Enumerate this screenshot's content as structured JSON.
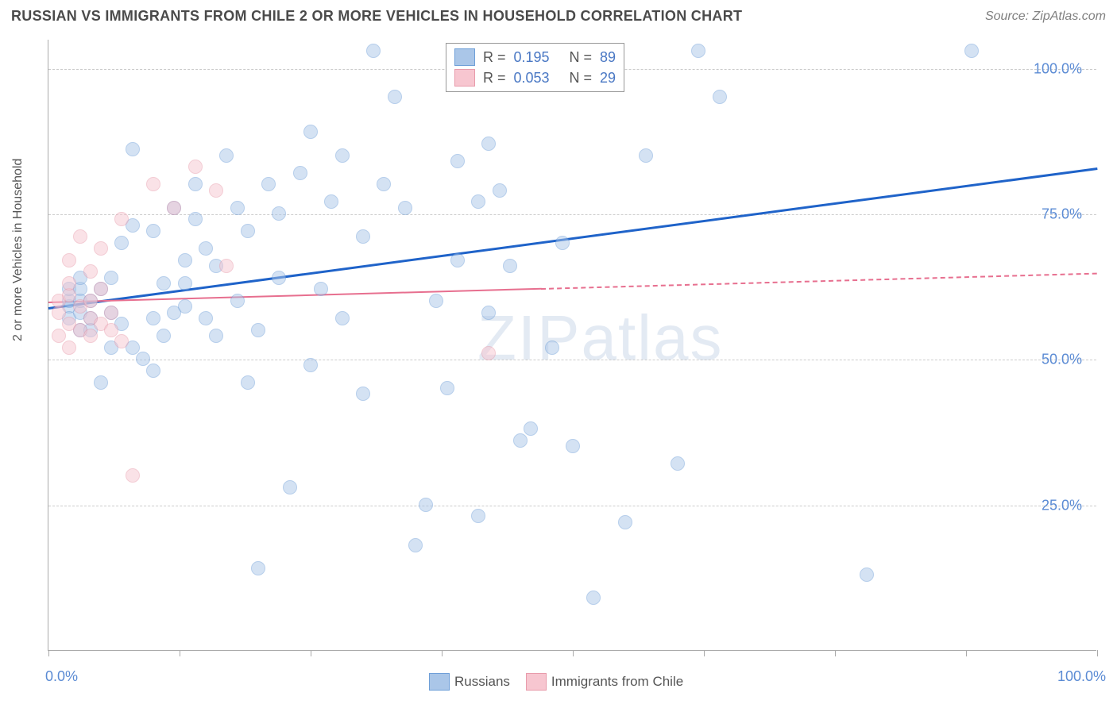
{
  "title": "RUSSIAN VS IMMIGRANTS FROM CHILE 2 OR MORE VEHICLES IN HOUSEHOLD CORRELATION CHART",
  "source": "Source: ZipAtlas.com",
  "ylabel": "2 or more Vehicles in Household",
  "watermark": "ZIPatlas",
  "chart": {
    "type": "scatter",
    "xlim": [
      0,
      100
    ],
    "ylim": [
      0,
      105
    ],
    "xticks": [
      0,
      12.5,
      25,
      37.5,
      50,
      62.5,
      75,
      87.5,
      100
    ],
    "xlabels": {
      "0": "0.0%",
      "100": "100.0%"
    },
    "ygrid": [
      25,
      50,
      75,
      100
    ],
    "ylabels": {
      "25": "25.0%",
      "50": "50.0%",
      "75": "75.0%",
      "100": "100.0%"
    },
    "background_color": "#ffffff",
    "grid_color": "#cccccc",
    "axis_color": "#aaaaaa",
    "label_color": "#5b8bd4",
    "marker_radius": 9,
    "marker_opacity": 0.5,
    "series": [
      {
        "name": "Russians",
        "color_fill": "#aac6e8",
        "color_stroke": "#6f9fd8",
        "R": "0.195",
        "N": "89",
        "trend": {
          "x1": 0,
          "y1": 59,
          "x2": 100,
          "y2": 83,
          "color": "#1f63c9",
          "width": 3,
          "dash_after_x": 100
        },
        "points": [
          [
            2,
            59
          ],
          [
            2,
            60
          ],
          [
            2,
            62
          ],
          [
            2,
            57
          ],
          [
            3,
            55
          ],
          [
            3,
            58
          ],
          [
            3,
            62
          ],
          [
            3,
            60
          ],
          [
            4,
            57
          ],
          [
            4,
            60
          ],
          [
            5,
            46
          ],
          [
            6,
            58
          ],
          [
            6,
            64
          ],
          [
            7,
            70
          ],
          [
            8,
            52
          ],
          [
            8,
            73
          ],
          [
            8,
            86
          ],
          [
            9,
            50
          ],
          [
            10,
            48
          ],
          [
            10,
            57
          ],
          [
            10,
            72
          ],
          [
            11,
            63
          ],
          [
            12,
            76
          ],
          [
            12,
            58
          ],
          [
            13,
            63
          ],
          [
            13,
            67
          ],
          [
            14,
            74
          ],
          [
            14,
            80
          ],
          [
            15,
            69
          ],
          [
            15,
            57
          ],
          [
            16,
            54
          ],
          [
            17,
            85
          ],
          [
            18,
            60
          ],
          [
            18,
            76
          ],
          [
            19,
            46
          ],
          [
            20,
            14
          ],
          [
            21,
            80
          ],
          [
            22,
            75
          ],
          [
            22,
            64
          ],
          [
            23,
            28
          ],
          [
            24,
            82
          ],
          [
            25,
            49
          ],
          [
            25,
            89
          ],
          [
            27,
            77
          ],
          [
            28,
            85
          ],
          [
            28,
            57
          ],
          [
            30,
            71
          ],
          [
            30,
            44
          ],
          [
            31,
            103
          ],
          [
            32,
            80
          ],
          [
            33,
            95
          ],
          [
            34,
            76
          ],
          [
            35,
            18
          ],
          [
            36,
            25
          ],
          [
            37,
            60
          ],
          [
            38,
            45
          ],
          [
            39,
            84
          ],
          [
            39,
            67
          ],
          [
            40,
            103
          ],
          [
            41,
            77
          ],
          [
            41,
            23
          ],
          [
            42,
            58
          ],
          [
            42,
            87
          ],
          [
            43,
            79
          ],
          [
            44,
            66
          ],
          [
            45,
            36
          ],
          [
            46,
            38
          ],
          [
            48,
            52
          ],
          [
            49,
            70
          ],
          [
            50,
            35
          ],
          [
            52,
            9
          ],
          [
            55,
            22
          ],
          [
            57,
            85
          ],
          [
            60,
            32
          ],
          [
            62,
            103
          ],
          [
            64,
            95
          ],
          [
            78,
            13
          ],
          [
            88,
            103
          ],
          [
            3,
            64
          ],
          [
            4,
            55
          ],
          [
            5,
            62
          ],
          [
            6,
            52
          ],
          [
            7,
            56
          ],
          [
            11,
            54
          ],
          [
            13,
            59
          ],
          [
            16,
            66
          ],
          [
            19,
            72
          ],
          [
            20,
            55
          ],
          [
            26,
            62
          ]
        ]
      },
      {
        "name": "Immigrants from Chile",
        "color_fill": "#f7c6d0",
        "color_stroke": "#e89bab",
        "R": "0.053",
        "N": "29",
        "trend": {
          "x1": 0,
          "y1": 60,
          "x2": 100,
          "y2": 65,
          "color": "#e76f8f",
          "width": 2,
          "dash_after_x": 47
        },
        "points": [
          [
            1,
            58
          ],
          [
            1,
            60
          ],
          [
            1,
            54
          ],
          [
            2,
            56
          ],
          [
            2,
            61
          ],
          [
            2,
            63
          ],
          [
            2,
            52
          ],
          [
            2,
            67
          ],
          [
            3,
            55
          ],
          [
            3,
            59
          ],
          [
            3,
            71
          ],
          [
            4,
            57
          ],
          [
            4,
            60
          ],
          [
            4,
            65
          ],
          [
            4,
            54
          ],
          [
            5,
            69
          ],
          [
            5,
            56
          ],
          [
            5,
            62
          ],
          [
            6,
            55
          ],
          [
            6,
            58
          ],
          [
            7,
            74
          ],
          [
            7,
            53
          ],
          [
            8,
            30
          ],
          [
            10,
            80
          ],
          [
            12,
            76
          ],
          [
            14,
            83
          ],
          [
            16,
            79
          ],
          [
            17,
            66
          ],
          [
            42,
            51
          ]
        ]
      }
    ]
  },
  "legend_top": {
    "R_label": "R =",
    "N_label": "N ="
  },
  "legend_bottom": [
    {
      "label": "Russians",
      "fill": "#aac6e8",
      "stroke": "#6f9fd8"
    },
    {
      "label": "Immigrants from Chile",
      "fill": "#f7c6d0",
      "stroke": "#e89bab"
    }
  ]
}
